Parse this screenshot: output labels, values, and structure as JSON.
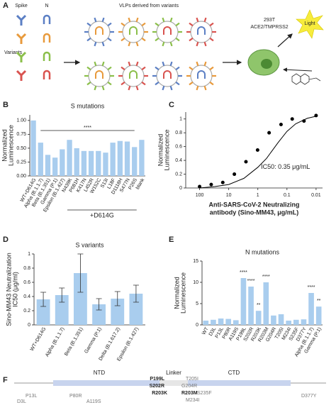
{
  "panels": [
    "A",
    "B",
    "C",
    "D",
    "E",
    "F"
  ],
  "panel_a": {
    "spike": "Spike",
    "n": "N",
    "variants": "Variants",
    "vlp_title": "VLPs derived from variants",
    "cell_line": "293T",
    "receptors": "ACE2/TMPRSS2",
    "light": "Light"
  },
  "chart_data": [
    {
      "type": "bar",
      "title": "S mutations",
      "ylabel": [
        "Normalized",
        "Luminescence"
      ],
      "categories": [
        "WT+D614G",
        "Alpha (B.1.1.7)",
        "Beta (B.1.351)",
        "Gamma (P.1)",
        "Epsilon (B.1.427)",
        "N439K",
        "P681H",
        "K417N",
        "L452R",
        "W152C",
        "S13I",
        "L18F",
        "D1118H",
        "S477N",
        "P26S",
        "blank"
      ],
      "series": [
        {
          "color": "#a9cdee",
          "values": [
            1.0,
            0.6,
            0.38,
            0.33,
            0.48,
            0.65,
            0.5,
            0.45,
            0.45,
            0.45,
            0.42,
            0.6,
            0.63,
            0.62,
            0.52,
            0.65
          ]
        }
      ],
      "ylim": [
        0,
        1.1
      ],
      "yticks": [
        {
          "value": 0,
          "label": "0.00"
        },
        {
          "value": 0.25,
          "label": "0.25"
        },
        {
          "value": 0.5,
          "label": "0.50"
        },
        {
          "value": 0.75,
          "label": "0.75"
        },
        {
          "value": 1.0,
          "label": "1.00"
        }
      ],
      "bracket_label": "****",
      "group_label": "+D614G"
    },
    {
      "type": "scatter",
      "title": "",
      "ylabel": [
        "Normalized",
        "Luminescence"
      ],
      "xlabel": [
        "Anti-SARS-CoV-2 Neutralizing",
        "antibody (Sino-MM43, μg/mL)"
      ],
      "log_x": true,
      "series": [
        {
          "color": "#000000",
          "x": [
            100,
            40,
            16,
            6.4,
            2.56,
            1.02,
            0.41,
            0.16,
            0.066,
            0.026,
            0.01
          ],
          "y": [
            0.02,
            0.05,
            0.08,
            0.2,
            0.38,
            0.55,
            0.8,
            0.92,
            1.0,
            0.97,
            1.05
          ]
        },
        {
          "color": "#000000",
          "x": [
            100,
            30,
            10,
            3,
            1,
            0.5,
            0.35,
            0.2,
            0.1,
            0.05,
            0.02,
            0.01
          ],
          "y": [
            0.0,
            0.02,
            0.05,
            0.14,
            0.3,
            0.43,
            0.52,
            0.66,
            0.82,
            0.93,
            1.01,
            1.04
          ]
        }
      ],
      "xlim": [
        300,
        0.006
      ],
      "xticks": [
        100,
        10,
        1,
        0.1,
        0.01
      ],
      "ylim": [
        0,
        1.1
      ],
      "yticks": [
        0.0,
        0.2,
        0.4,
        0.6,
        0.8,
        1.0
      ],
      "annotation": "IC50: 0.35 μg/mL"
    },
    {
      "type": "bar",
      "title": "S variants",
      "ylabel": [
        "Sino-MM43 Neutralization",
        "IC50 (μg/ml)"
      ],
      "categories": [
        "WT+D614G",
        "Alpha (B.1.1.7)",
        "Beta (B.1.351)",
        "Gamma (P.1)",
        "Delta (B.1.617.2)",
        "Epsilon (B.1.427)"
      ],
      "series": [
        {
          "color": "#a9cdee",
          "values": [
            0.36,
            0.42,
            0.73,
            0.29,
            0.37,
            0.44
          ],
          "errors": [
            0.1,
            0.1,
            0.27,
            0.08,
            0.1,
            0.12
          ]
        }
      ],
      "ylim": [
        0,
        1.0
      ],
      "yticks": [
        0.0,
        0.2,
        0.4,
        0.6,
        0.8,
        1.0
      ]
    },
    {
      "type": "bar",
      "title": "N mutations",
      "ylabel": [
        "Normalized",
        "Luminescence"
      ],
      "categories": [
        "WT",
        "D3L",
        "P13L",
        "P80R",
        "A119S",
        "P199L",
        "S202R",
        "R203K",
        "R203M",
        "G204R",
        "T205I",
        "M234I",
        "S235F",
        "D377Y",
        "Alpha (B.1.1.7)",
        "Gamma (P.1)"
      ],
      "series": [
        {
          "color": "#a9cdee",
          "values": [
            1.0,
            1.2,
            1.5,
            1.4,
            1.1,
            11,
            9,
            3.3,
            10,
            2.2,
            2.5,
            1.0,
            1.2,
            1.3,
            7.5,
            4.3
          ]
        }
      ],
      "significance": [
        null,
        null,
        null,
        null,
        null,
        "****",
        "****",
        "**",
        "****",
        null,
        null,
        null,
        null,
        null,
        "****",
        "**"
      ],
      "ylim": [
        0,
        15
      ],
      "yticks": [
        0,
        5,
        10,
        15
      ]
    }
  ],
  "panel_f": {
    "domains": [
      "NTD",
      "Linker",
      "CTD"
    ],
    "mutations": [
      "D3L",
      "P13L",
      "P80R",
      "A119S",
      "P199L",
      "S202R",
      "R203K",
      "R203M",
      "G204R",
      "T205I",
      "M234I",
      "S235F",
      "D377Y"
    ]
  }
}
